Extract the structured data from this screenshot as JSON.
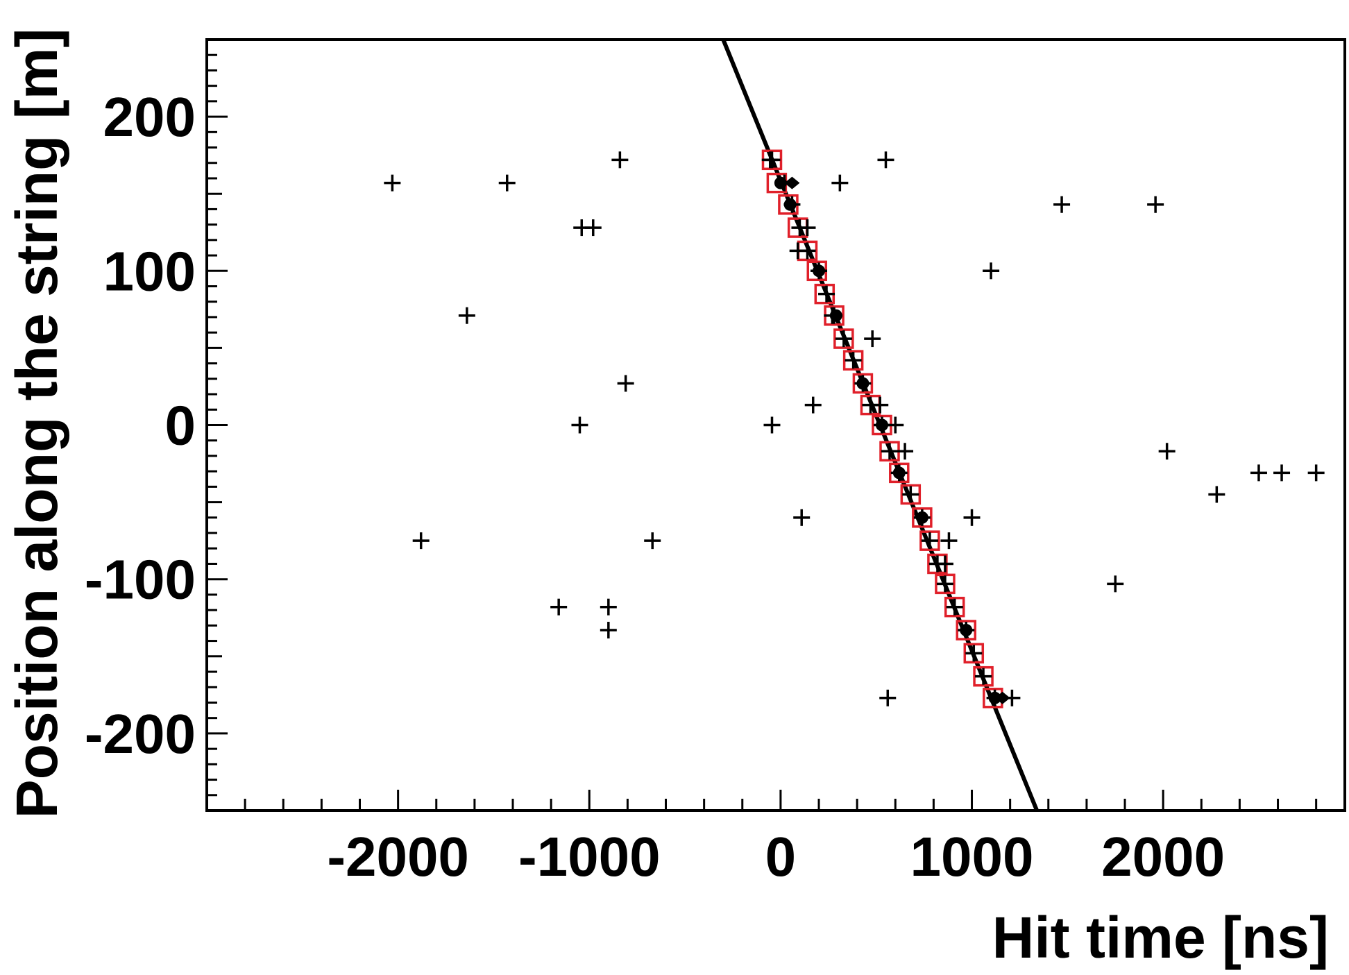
{
  "chart_data": {
    "type": "scatter",
    "xlabel": "Hit time [ns]",
    "ylabel": "Position along the string [m]",
    "xlim": [
      -3000,
      2950
    ],
    "ylim": [
      -250,
      250
    ],
    "xticks": [
      -2000,
      -1000,
      0,
      1000,
      2000
    ],
    "yticks": [
      -200,
      -100,
      0,
      100,
      200
    ],
    "xtick_labels": [
      "-2000",
      "-1000",
      "0",
      "1000",
      "2000"
    ],
    "ytick_labels": [
      "-200",
      "-100",
      "0",
      "100",
      "200"
    ],
    "grid": false,
    "legend": "none",
    "series": [
      {
        "marker": "cross",
        "color": "#000000",
        "points": [
          [
            -2030,
            157
          ],
          [
            -1430,
            157
          ],
          [
            -840,
            172
          ],
          [
            -1040,
            128
          ],
          [
            -980,
            128
          ],
          [
            -1640,
            71
          ],
          [
            -810,
            27
          ],
          [
            -1050,
            0
          ],
          [
            -1880,
            -75
          ],
          [
            -670,
            -75
          ],
          [
            -1160,
            -118
          ],
          [
            -900,
            -118
          ],
          [
            -900,
            -133
          ],
          [
            -55,
            172
          ],
          [
            -45,
            0
          ],
          [
            140,
            128
          ],
          [
            90,
            113
          ],
          [
            110,
            -60
          ],
          [
            170,
            13
          ],
          [
            310,
            157
          ],
          [
            270,
            71
          ],
          [
            480,
            56
          ],
          [
            520,
            13
          ],
          [
            550,
            172
          ],
          [
            560,
            -177
          ],
          [
            600,
            0
          ],
          [
            650,
            -17
          ],
          [
            860,
            -90
          ],
          [
            880,
            -75
          ],
          [
            1000,
            -60
          ],
          [
            1100,
            100
          ],
          [
            1470,
            143
          ],
          [
            1960,
            143
          ],
          [
            2020,
            -17
          ],
          [
            1750,
            -103
          ],
          [
            2280,
            -45
          ],
          [
            2500,
            -31
          ],
          [
            2620,
            -31
          ],
          [
            2800,
            -31
          ],
          [
            1210,
            -177
          ],
          [
            -45,
            172
          ],
          [
            20,
            157
          ],
          [
            60,
            143
          ],
          [
            100,
            128
          ],
          [
            140,
            113
          ],
          [
            200,
            100
          ],
          [
            240,
            85
          ],
          [
            280,
            71
          ],
          [
            330,
            56
          ],
          [
            380,
            42
          ],
          [
            430,
            27
          ],
          [
            470,
            13
          ],
          [
            530,
            0
          ],
          [
            570,
            -17
          ],
          [
            620,
            -31
          ],
          [
            680,
            -45
          ],
          [
            740,
            -60
          ],
          [
            780,
            -75
          ],
          [
            820,
            -90
          ],
          [
            860,
            -103
          ],
          [
            910,
            -118
          ],
          [
            970,
            -133
          ],
          [
            1010,
            -148
          ],
          [
            1060,
            -163
          ],
          [
            1120,
            -177
          ]
        ]
      },
      {
        "marker": "open-square",
        "color": "#e0202a",
        "points": [
          [
            -45,
            172
          ],
          [
            -20,
            157
          ],
          [
            40,
            143
          ],
          [
            90,
            128
          ],
          [
            140,
            113
          ],
          [
            190,
            100
          ],
          [
            230,
            85
          ],
          [
            280,
            71
          ],
          [
            330,
            56
          ],
          [
            380,
            42
          ],
          [
            430,
            27
          ],
          [
            470,
            13
          ],
          [
            530,
            0
          ],
          [
            570,
            -17
          ],
          [
            620,
            -31
          ],
          [
            680,
            -45
          ],
          [
            740,
            -60
          ],
          [
            780,
            -75
          ],
          [
            820,
            -90
          ],
          [
            860,
            -103
          ],
          [
            910,
            -118
          ],
          [
            970,
            -133
          ],
          [
            1010,
            -148
          ],
          [
            1060,
            -163
          ],
          [
            1110,
            -177
          ]
        ]
      },
      {
        "marker": "filled-circle",
        "color": "#000000",
        "points": [
          [
            0,
            157
          ],
          [
            50,
            143
          ],
          [
            200,
            100
          ],
          [
            290,
            71
          ],
          [
            430,
            27
          ],
          [
            530,
            0
          ],
          [
            620,
            -31
          ],
          [
            740,
            -60
          ],
          [
            970,
            -133
          ],
          [
            1120,
            -177
          ]
        ]
      },
      {
        "marker": "diamond",
        "color": "#000000",
        "points": [
          [
            60,
            157
          ],
          [
            1160,
            -177
          ]
        ]
      }
    ],
    "fit_line": {
      "color": "#000000",
      "points": [
        [
          -300,
          250
        ],
        [
          1340,
          -250
        ]
      ]
    }
  }
}
